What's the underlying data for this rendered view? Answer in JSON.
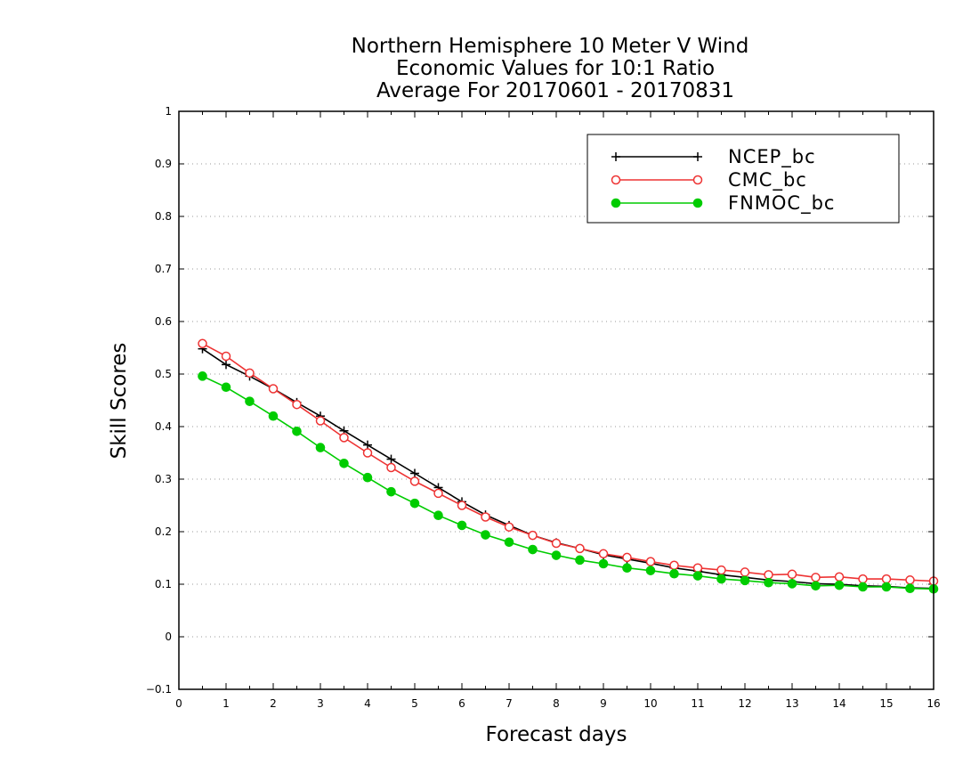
{
  "chart_data": {
    "type": "line",
    "title": [
      "Northern Hemisphere 10 Meter V Wind",
      "Economic Values for 10:1 Ratio",
      "Average For 20170601 - 20170831"
    ],
    "xlabel": "Forecast days",
    "ylabel": "Skill Scores",
    "xlim": [
      0,
      16
    ],
    "ylim": [
      -0.1,
      1
    ],
    "xticks": [
      "0",
      "1",
      "2",
      "3",
      "4",
      "5",
      "6",
      "7",
      "8",
      "9",
      "10",
      "11",
      "12",
      "13",
      "14",
      "15",
      "16"
    ],
    "yticks": [
      "−0.1",
      "0",
      "0.1",
      "0.2",
      "0.3",
      "0.4",
      "0.5",
      "0.6",
      "0.7",
      "0.8",
      "0.9",
      "1"
    ],
    "grid": "horizontal dotted",
    "legend_position": "top-right",
    "x": [
      0.5,
      1,
      1.5,
      2,
      2.5,
      3,
      3.5,
      4,
      4.5,
      5,
      5.5,
      6,
      6.5,
      7,
      7.5,
      8,
      8.5,
      9,
      9.5,
      10,
      10.5,
      11,
      11.5,
      12,
      12.5,
      13,
      13.5,
      14,
      14.5,
      15,
      15.5,
      16
    ],
    "series": [
      {
        "name": "NCEP_bc",
        "color": "#000000",
        "marker": "plus",
        "values": [
          0.548,
          0.518,
          0.496,
          0.472,
          0.446,
          0.42,
          0.392,
          0.365,
          0.338,
          0.311,
          0.284,
          0.257,
          0.232,
          0.212,
          0.193,
          0.179,
          0.168,
          0.156,
          0.148,
          0.14,
          0.131,
          0.125,
          0.118,
          0.113,
          0.108,
          0.105,
          0.101,
          0.1,
          0.097,
          0.096,
          0.093,
          0.092
        ]
      },
      {
        "name": "CMC_bc",
        "color": "#ee3333",
        "marker": "open-circle",
        "values": [
          0.558,
          0.534,
          0.502,
          0.472,
          0.442,
          0.411,
          0.379,
          0.35,
          0.322,
          0.296,
          0.273,
          0.25,
          0.228,
          0.209,
          0.193,
          0.178,
          0.168,
          0.158,
          0.151,
          0.143,
          0.136,
          0.131,
          0.127,
          0.123,
          0.118,
          0.119,
          0.113,
          0.114,
          0.11,
          0.11,
          0.108,
          0.106
        ]
      },
      {
        "name": "FNMOC_bc",
        "color": "#00cc00",
        "marker": "filled-circle",
        "values": [
          0.496,
          0.475,
          0.448,
          0.42,
          0.391,
          0.36,
          0.33,
          0.303,
          0.276,
          0.254,
          0.231,
          0.212,
          0.194,
          0.18,
          0.166,
          0.155,
          0.146,
          0.139,
          0.131,
          0.126,
          0.12,
          0.116,
          0.11,
          0.107,
          0.103,
          0.101,
          0.097,
          0.098,
          0.095,
          0.095,
          0.092,
          0.091
        ]
      }
    ]
  }
}
